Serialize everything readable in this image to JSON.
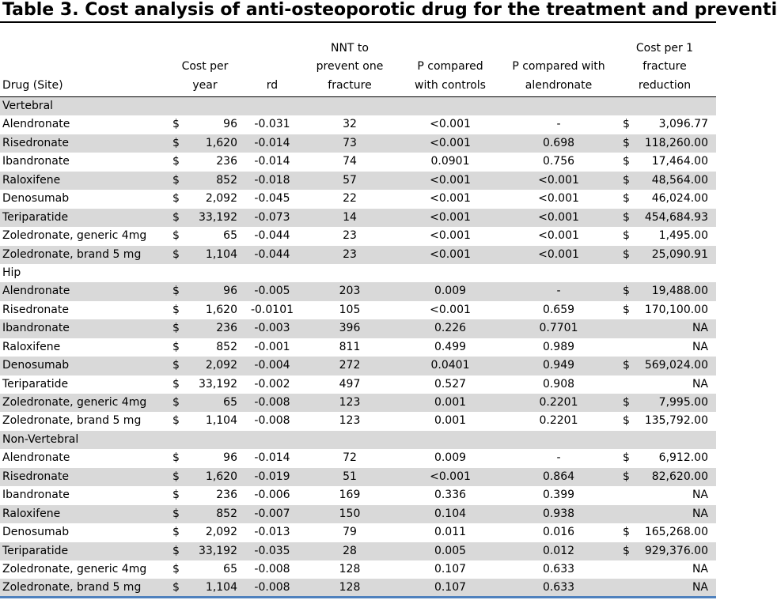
{
  "title": "Table 3. Cost analysis of anti-osteoporotic drug for the treatment and preventi",
  "headers": {
    "drug": [
      "Drug (Site)"
    ],
    "cost": [
      "Cost per",
      "year"
    ],
    "rd": [
      "rd"
    ],
    "nnt": [
      "NNT to",
      "prevent one",
      "fracture"
    ],
    "p_controls": [
      "P compared",
      "with controls"
    ],
    "p_alendronate": [
      "P compared with",
      "alendronate"
    ],
    "cost_per_fracture": [
      "Cost per 1",
      "fracture",
      "reduction"
    ]
  },
  "rows": [
    {
      "type": "section",
      "label": "Vertebral"
    },
    {
      "drug": "Alendronate",
      "cur": "$",
      "cost": "96",
      "rd": "-0.031",
      "nnt": "32",
      "p_controls": "<0.001",
      "p_alendronate": "-",
      "cpf_cur": "$",
      "cpf": "3,096.77"
    },
    {
      "drug": "Risedronate",
      "cur": "$",
      "cost": "1,620",
      "rd": "-0.014",
      "nnt": "73",
      "p_controls": "<0.001",
      "p_alendronate": "0.698",
      "cpf_cur": "$",
      "cpf": "118,260.00"
    },
    {
      "drug": "Ibandronate",
      "cur": "$",
      "cost": "236",
      "rd": "-0.014",
      "nnt": "74",
      "p_controls": "0.0901",
      "p_alendronate": "0.756",
      "cpf_cur": "$",
      "cpf": "17,464.00"
    },
    {
      "drug": "Raloxifene",
      "cur": "$",
      "cost": "852",
      "rd": "-0.018",
      "nnt": "57",
      "p_controls": "<0.001",
      "p_alendronate": "<0.001",
      "cpf_cur": "$",
      "cpf": "48,564.00"
    },
    {
      "drug": "Denosumab",
      "cur": "$",
      "cost": "2,092",
      "rd": "-0.045",
      "nnt": "22",
      "p_controls": "<0.001",
      "p_alendronate": "<0.001",
      "cpf_cur": "$",
      "cpf": "46,024.00"
    },
    {
      "drug": "Teriparatide",
      "cur": "$",
      "cost": "33,192",
      "rd": "-0.073",
      "nnt": "14",
      "p_controls": "<0.001",
      "p_alendronate": "<0.001",
      "cpf_cur": "$",
      "cpf": "454,684.93"
    },
    {
      "drug": "Zoledronate, generic 4mg",
      "cur": "$",
      "cost": "65",
      "rd": "-0.044",
      "nnt": "23",
      "p_controls": "<0.001",
      "p_alendronate": "<0.001",
      "cpf_cur": "$",
      "cpf": "1,495.00"
    },
    {
      "drug": "Zoledronate, brand 5 mg",
      "cur": "$",
      "cost": "1,104",
      "rd": "-0.044",
      "nnt": "23",
      "p_controls": "<0.001",
      "p_alendronate": "<0.001",
      "cpf_cur": "$",
      "cpf": "25,090.91"
    },
    {
      "type": "section",
      "label": "Hip"
    },
    {
      "drug": "Alendronate",
      "cur": "$",
      "cost": "96",
      "rd": "-0.005",
      "nnt": "203",
      "p_controls": "0.009",
      "p_alendronate": "-",
      "cpf_cur": "$",
      "cpf": "19,488.00"
    },
    {
      "drug": "Risedronate",
      "cur": "$",
      "cost": "1,620",
      "rd": "-0.0101",
      "nnt": "105",
      "p_controls": "<0.001",
      "p_alendronate": "0.659",
      "cpf_cur": "$",
      "cpf": "170,100.00"
    },
    {
      "drug": "Ibandronate",
      "cur": "$",
      "cost": "236",
      "rd": "-0.003",
      "nnt": "396",
      "p_controls": "0.226",
      "p_alendronate": "0.7701",
      "cpf_cur": "",
      "cpf": "NA"
    },
    {
      "drug": "Raloxifene",
      "cur": "$",
      "cost": "852",
      "rd": "-0.001",
      "nnt": "811",
      "p_controls": "0.499",
      "p_alendronate": "0.989",
      "cpf_cur": "",
      "cpf": "NA"
    },
    {
      "drug": "Denosumab",
      "cur": "$",
      "cost": "2,092",
      "rd": "-0.004",
      "nnt": "272",
      "p_controls": "0.0401",
      "p_alendronate": "0.949",
      "cpf_cur": "$",
      "cpf": "569,024.00"
    },
    {
      "drug": "Teriparatide",
      "cur": "$",
      "cost": "33,192",
      "rd": "-0.002",
      "nnt": "497",
      "p_controls": "0.527",
      "p_alendronate": "0.908",
      "cpf_cur": "",
      "cpf": "NA"
    },
    {
      "drug": "Zoledronate, generic 4mg",
      "cur": "$",
      "cost": "65",
      "rd": "-0.008",
      "nnt": "123",
      "p_controls": "0.001",
      "p_alendronate": "0.2201",
      "cpf_cur": "$",
      "cpf": "7,995.00"
    },
    {
      "drug": "Zoledronate, brand 5 mg",
      "cur": "$",
      "cost": "1,104",
      "rd": "-0.008",
      "nnt": "123",
      "p_controls": "0.001",
      "p_alendronate": "0.2201",
      "cpf_cur": "$",
      "cpf": "135,792.00"
    },
    {
      "type": "section",
      "label": "Non-Vertebral"
    },
    {
      "drug": "Alendronate",
      "cur": "$",
      "cost": "96",
      "rd": "-0.014",
      "nnt": "72",
      "p_controls": "0.009",
      "p_alendronate": "-",
      "cpf_cur": "$",
      "cpf": "6,912.00"
    },
    {
      "drug": "Risedronate",
      "cur": "$",
      "cost": "1,620",
      "rd": "-0.019",
      "nnt": "51",
      "p_controls": "<0.001",
      "p_alendronate": "0.864",
      "cpf_cur": "$",
      "cpf": "82,620.00"
    },
    {
      "drug": "Ibandronate",
      "cur": "$",
      "cost": "236",
      "rd": "-0.006",
      "nnt": "169",
      "p_controls": "0.336",
      "p_alendronate": "0.399",
      "cpf_cur": "",
      "cpf": "NA"
    },
    {
      "drug": "Raloxifene",
      "cur": "$",
      "cost": "852",
      "rd": "-0.007",
      "nnt": "150",
      "p_controls": "0.104",
      "p_alendronate": "0.938",
      "cpf_cur": "",
      "cpf": "NA"
    },
    {
      "drug": "Denosumab",
      "cur": "$",
      "cost": "2,092",
      "rd": "-0.013",
      "nnt": "79",
      "p_controls": "0.011",
      "p_alendronate": "0.016",
      "cpf_cur": "$",
      "cpf": "165,268.00"
    },
    {
      "drug": "Teriparatide",
      "cur": "$",
      "cost": "33,192",
      "rd": "-0.035",
      "nnt": "28",
      "p_controls": "0.005",
      "p_alendronate": "0.012",
      "cpf_cur": "$",
      "cpf": "929,376.00"
    },
    {
      "drug": "Zoledronate, generic 4mg",
      "cur": "$",
      "cost": "65",
      "rd": "-0.008",
      "nnt": "128",
      "p_controls": "0.107",
      "p_alendronate": "0.633",
      "cpf_cur": "",
      "cpf": "NA"
    },
    {
      "drug": "Zoledronate, brand 5 mg",
      "cur": "$",
      "cost": "1,104",
      "rd": "-0.008",
      "nnt": "128",
      "p_controls": "0.107",
      "p_alendronate": "0.633",
      "cpf_cur": "",
      "cpf": "NA"
    }
  ],
  "colors": {
    "row_shade": "#d9d9d9",
    "bottom_rule": "#4f81bd"
  }
}
